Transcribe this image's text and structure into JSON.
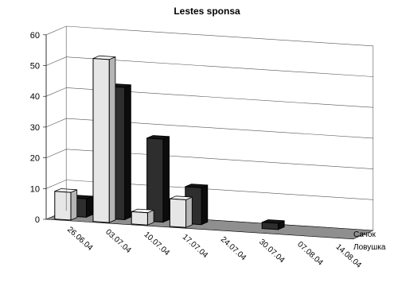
{
  "chart_data": {
    "type": "bar",
    "title": "Lestes sponsa",
    "categories": [
      "26.06.04",
      "03.07.04",
      "10.07.04",
      "17.07.04",
      "24.07.04",
      "30.07.04",
      "07.08.04",
      "14.08.04"
    ],
    "series": [
      {
        "name": "Сачок",
        "values": [
          9,
          53,
          4,
          9,
          0,
          0,
          0,
          0
        ]
      },
      {
        "name": "Ловушка",
        "values": [
          6,
          43,
          27,
          12,
          0,
          2,
          0,
          0
        ]
      }
    ],
    "yticks": [
      "0",
      "10",
      "20",
      "30",
      "40",
      "50",
      "60"
    ],
    "ylim": [
      0,
      60
    ],
    "grid": true,
    "legend_position": "right",
    "colors": {
      "front_series": "#e6e6e6",
      "back_series": "#2e2e2e",
      "floor": "#8f8f8f",
      "gridline": "#555555"
    }
  }
}
